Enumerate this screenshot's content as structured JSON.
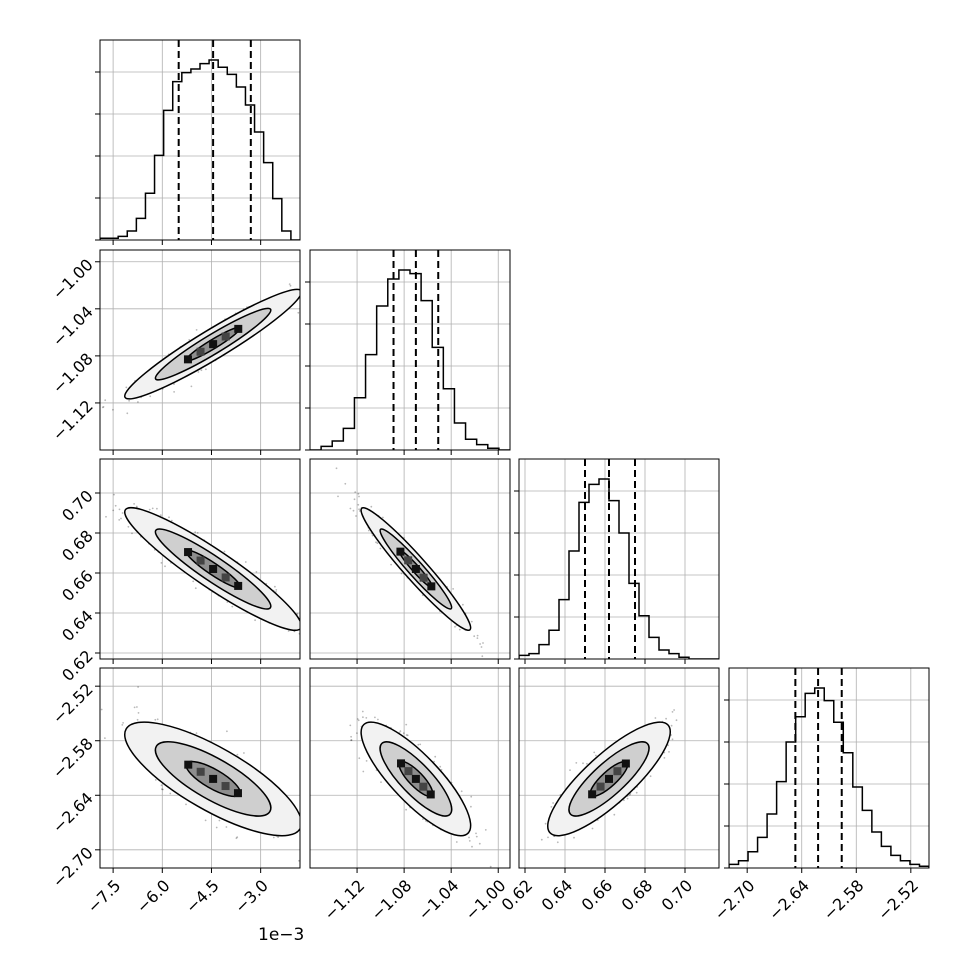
{
  "chart_data": {
    "type": "corner",
    "parameters": [
      {
        "range": [
          -7.9,
          -1.8
        ],
        "ticks": [
          -7.5,
          -6.0,
          -4.5,
          -3.0
        ],
        "tick_labels": [
          "−7.5",
          "−6.0",
          "−4.5",
          "−3.0"
        ],
        "offset_label": "1e−3",
        "scale": 0.001,
        "quantiles": [
          -5.5,
          -4.45,
          -3.3
        ]
      },
      {
        "range": [
          -1.16,
          -0.99
        ],
        "ticks": [
          -1.12,
          -1.08,
          -1.04,
          -1.0
        ],
        "tick_labels": [
          "−1.12",
          "−1.08",
          "−1.04",
          "−1.00"
        ],
        "quantiles": [
          -1.089,
          -1.07,
          -1.051
        ]
      },
      {
        "range": [
          0.617,
          0.717
        ],
        "ticks": [
          0.62,
          0.64,
          0.66,
          0.68,
          0.7
        ],
        "tick_labels": [
          "0.62",
          "0.64",
          "0.66",
          "0.68",
          "0.70"
        ],
        "quantiles": [
          0.65,
          0.662,
          0.675
        ]
      },
      {
        "range": [
          -2.72,
          -2.5
        ],
        "ticks": [
          -2.7,
          -2.64,
          -2.58,
          -2.52
        ],
        "tick_labels": [
          "−2.70",
          "−2.64",
          "−2.58",
          "−2.52"
        ],
        "quantiles": [
          -2.647,
          -2.622,
          -2.596
        ]
      }
    ],
    "histograms": [
      [
        0.01,
        0.01,
        0.02,
        0.05,
        0.12,
        0.26,
        0.47,
        0.72,
        0.88,
        0.93,
        0.95,
        0.98,
        1.0,
        0.96,
        0.92,
        0.85,
        0.75,
        0.6,
        0.43,
        0.23,
        0.05,
        0.0
      ],
      [
        0.0,
        0.02,
        0.05,
        0.12,
        0.29,
        0.53,
        0.8,
        0.95,
        1.0,
        0.98,
        0.83,
        0.57,
        0.34,
        0.15,
        0.06,
        0.03,
        0.01,
        0.0
      ],
      [
        0.02,
        0.03,
        0.08,
        0.16,
        0.33,
        0.6,
        0.87,
        0.97,
        1.0,
        0.88,
        0.7,
        0.42,
        0.24,
        0.12,
        0.05,
        0.03,
        0.01,
        0.0,
        0.0,
        0.0
      ],
      [
        0.02,
        0.04,
        0.09,
        0.17,
        0.3,
        0.48,
        0.7,
        0.84,
        0.97,
        1.0,
        0.93,
        0.81,
        0.64,
        0.45,
        0.32,
        0.2,
        0.12,
        0.07,
        0.04,
        0.02,
        0.01
      ]
    ],
    "correlations": {
      "1-0": 0.95,
      "2-0": -0.93,
      "2-1": -0.96,
      "3-0": -0.78,
      "3-1": -0.82,
      "3-2": 0.83
    },
    "grid": true,
    "quantile_lines": "dashed",
    "contour_levels": 3
  }
}
